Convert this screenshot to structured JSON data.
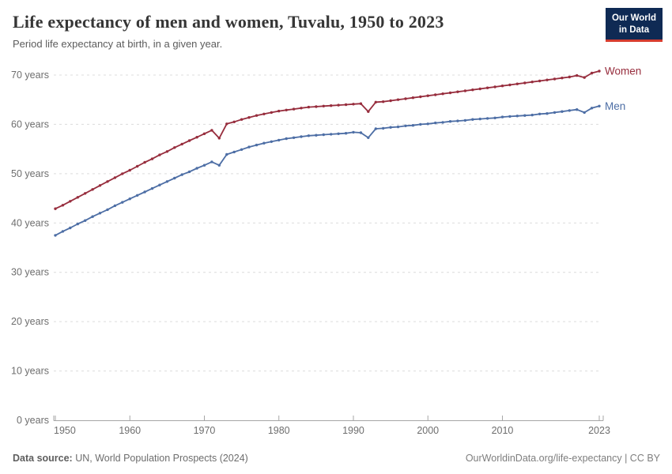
{
  "header": {
    "logo": {
      "line1": "Our World",
      "line2": "in Data",
      "bg_color": "#0f2a54",
      "accent_color": "#d63c2f"
    }
  },
  "chart_data": {
    "type": "line",
    "title": "Life expectancy of men and women, Tuvalu, 1950 to 2023",
    "subtitle": "Period life expectancy at birth, in a given year.",
    "xlim": [
      1950,
      2023
    ],
    "ylim": [
      0,
      70
    ],
    "x_ticks": [
      1950,
      1960,
      1970,
      1980,
      1990,
      2000,
      2010,
      2023
    ],
    "y_ticks": [
      0,
      10,
      20,
      30,
      40,
      50,
      60,
      70
    ],
    "y_tick_suffix": " years",
    "grid": "horizontal-dashed",
    "legend_position": "end-of-line-labels",
    "colors": {
      "grid": "#dcdcdc",
      "axis": "#a6a6a6",
      "tick_label": "#6e6e6e"
    },
    "years": [
      1950,
      1951,
      1952,
      1953,
      1954,
      1955,
      1956,
      1957,
      1958,
      1959,
      1960,
      1961,
      1962,
      1963,
      1964,
      1965,
      1966,
      1967,
      1968,
      1969,
      1970,
      1971,
      1972,
      1973,
      1974,
      1975,
      1976,
      1977,
      1978,
      1979,
      1980,
      1981,
      1982,
      1983,
      1984,
      1985,
      1986,
      1987,
      1988,
      1989,
      1990,
      1991,
      1992,
      1993,
      1994,
      1995,
      1996,
      1997,
      1998,
      1999,
      2000,
      2001,
      2002,
      2003,
      2004,
      2005,
      2006,
      2007,
      2008,
      2009,
      2010,
      2011,
      2012,
      2013,
      2014,
      2015,
      2016,
      2017,
      2018,
      2019,
      2020,
      2021,
      2022,
      2023
    ],
    "series": [
      {
        "name": "Women",
        "color": "#972d3d",
        "values": [
          42.9,
          43.6,
          44.4,
          45.2,
          46.0,
          46.8,
          47.6,
          48.4,
          49.2,
          50.0,
          50.7,
          51.5,
          52.3,
          53.0,
          53.8,
          54.5,
          55.3,
          56.0,
          56.7,
          57.4,
          58.1,
          58.8,
          57.2,
          60.1,
          60.5,
          61.0,
          61.4,
          61.8,
          62.1,
          62.4,
          62.7,
          62.9,
          63.1,
          63.3,
          63.5,
          63.6,
          63.7,
          63.8,
          63.9,
          64.0,
          64.1,
          64.2,
          62.6,
          64.5,
          64.6,
          64.8,
          65.0,
          65.2,
          65.4,
          65.6,
          65.8,
          66.0,
          66.2,
          66.4,
          66.6,
          66.8,
          67.0,
          67.2,
          67.4,
          67.6,
          67.8,
          68.0,
          68.2,
          68.4,
          68.6,
          68.8,
          69.0,
          69.2,
          69.4,
          69.6,
          69.9,
          69.5,
          70.4,
          70.8
        ]
      },
      {
        "name": "Men",
        "color": "#4d6ea5",
        "values": [
          37.5,
          38.3,
          39.0,
          39.8,
          40.5,
          41.3,
          42.0,
          42.7,
          43.5,
          44.2,
          44.9,
          45.6,
          46.3,
          47.0,
          47.7,
          48.4,
          49.1,
          49.8,
          50.4,
          51.1,
          51.7,
          52.4,
          51.7,
          53.9,
          54.4,
          54.9,
          55.4,
          55.8,
          56.2,
          56.5,
          56.8,
          57.1,
          57.3,
          57.5,
          57.7,
          57.8,
          57.9,
          58.0,
          58.1,
          58.2,
          58.4,
          58.3,
          57.3,
          59.1,
          59.2,
          59.4,
          59.5,
          59.7,
          59.8,
          60.0,
          60.1,
          60.3,
          60.4,
          60.6,
          60.7,
          60.8,
          61.0,
          61.1,
          61.2,
          61.3,
          61.5,
          61.6,
          61.7,
          61.8,
          61.9,
          62.1,
          62.2,
          62.4,
          62.6,
          62.8,
          63.0,
          62.4,
          63.3,
          63.7
        ]
      }
    ]
  },
  "footer": {
    "source_label": "Data source:",
    "source_text": " UN, World Population Prospects (2024)",
    "credit": "OurWorldinData.org/life-expectancy | CC BY"
  }
}
